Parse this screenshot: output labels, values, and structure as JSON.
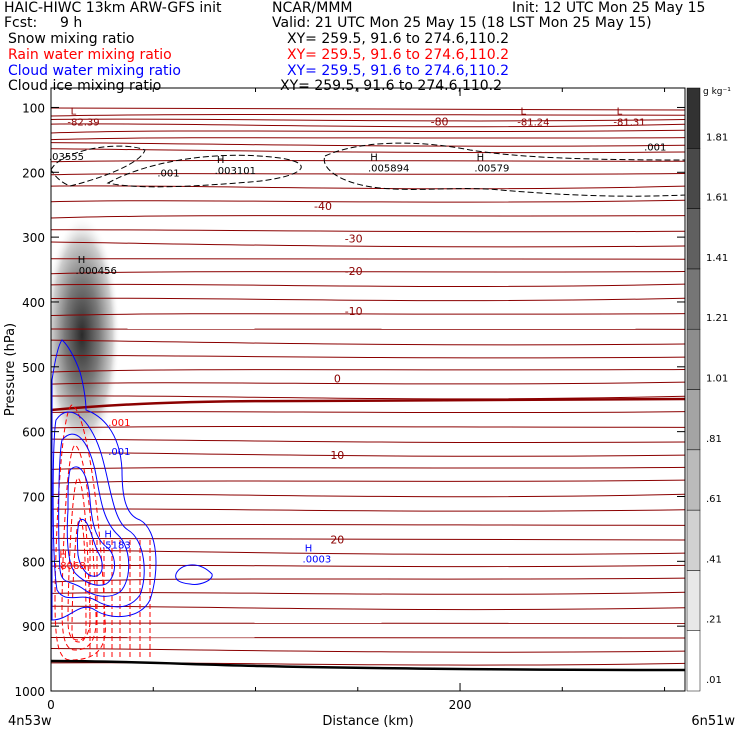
{
  "header": {
    "model": "HAIC-HIWC 13km ARW-GFS init",
    "center": "NCAR/MMM",
    "init": "Init: 12 UTC Mon 25 May 15",
    "fcst_label": "Fcst:",
    "fcst_value": "9 h",
    "valid": "Valid: 21 UTC Mon 25 May 15 (18 LST Mon 25 May 15)",
    "fields": [
      {
        "name": "Snow mixing ratio",
        "xy": "XY= 259.5, 91.6 to 274.6,110.2",
        "color": "#000000"
      },
      {
        "name": "Rain water mixing ratio",
        "xy": "XY= 259.5, 91.6 to 274.6,110.2",
        "color": "#ff0000"
      },
      {
        "name": "Cloud water mixing ratio",
        "xy": "XY= 259.5, 91.6 to 274.6,110.2",
        "color": "#0000ff"
      },
      {
        "name": "Cloud ice mixing ratio",
        "xy": "XY= 259.5, 91.6 to 274.6,110.2",
        "color": "#000000"
      }
    ]
  },
  "chart_data": {
    "type": "cross-section",
    "xlabel": "Distance (km)",
    "ylabel": "Pressure (hPa)",
    "xlim": [
      0,
      310
    ],
    "ylim": [
      1000,
      70
    ],
    "x_ticks": [
      0,
      200
    ],
    "y_ticks": [
      100,
      200,
      300,
      400,
      500,
      600,
      700,
      800,
      900,
      1000
    ],
    "x_endpoints": [
      "4n53w",
      "6n51w"
    ],
    "colorbar": {
      "unit": "g kg⁻¹",
      "labels": [
        ".01",
        ".21",
        ".41",
        ".61",
        ".81",
        "1.01",
        "1.21",
        "1.41",
        "1.61",
        "1.81"
      ]
    },
    "temperature_contours": {
      "color": "#8b0000",
      "labels": [
        {
          "text": "-80",
          "x": 190,
          "p": 122
        },
        {
          "text": "-40",
          "x": 133,
          "p": 252
        },
        {
          "text": "-30",
          "x": 148,
          "p": 302
        },
        {
          "text": "-20",
          "x": 148,
          "p": 352
        },
        {
          "text": "-10",
          "x": 148,
          "p": 414
        },
        {
          "text": "0",
          "x": 140,
          "p": 518
        },
        {
          "text": "10",
          "x": 140,
          "p": 636
        },
        {
          "text": "20",
          "x": 140,
          "p": 766
        }
      ]
    },
    "extrema": [
      {
        "kind": "L",
        "value": "-82.39",
        "x": 8,
        "p": 111,
        "color": "#8b0000"
      },
      {
        "kind": "L",
        "value": "-81.24",
        "x": 228,
        "p": 111,
        "color": "#8b0000"
      },
      {
        "kind": "L",
        "value": "-81.31",
        "x": 275,
        "p": 111,
        "color": "#8b0000"
      },
      {
        "kind": "H",
        "value": ".003101",
        "x": 80,
        "p": 186,
        "color": "#000000"
      },
      {
        "kind": "H",
        "value": ".005894",
        "x": 155,
        "p": 182,
        "color": "#000000"
      },
      {
        "kind": "H",
        "value": ".00579",
        "x": 207,
        "p": 182,
        "color": "#000000"
      },
      {
        "kind": "H",
        "value": ".000456",
        "x": 12,
        "p": 340,
        "color": "#000000"
      },
      {
        "kind": "H",
        "value": ".5183",
        "x": 25,
        "p": 763,
        "color": "#0000ff"
      },
      {
        "kind": "H",
        "value": ".8068",
        "x": 3,
        "p": 795,
        "color": "#ff0000"
      },
      {
        "kind": "H",
        "value": ".0003",
        "x": 123,
        "p": 785,
        "color": "#0000ff"
      }
    ],
    "contour_labels": [
      {
        "text": ".03555",
        "x": -1,
        "p": 175,
        "color": "#000000"
      },
      {
        "text": ".001",
        "x": 52,
        "p": 200,
        "color": "#000000"
      },
      {
        "text": ".001",
        "x": 290,
        "p": 160,
        "color": "#000000"
      },
      {
        "text": ".001",
        "x": 28,
        "p": 585,
        "color": "#ff0000"
      },
      {
        "text": ".001",
        "x": 28,
        "p": 630,
        "color": "#0000ff"
      }
    ]
  }
}
